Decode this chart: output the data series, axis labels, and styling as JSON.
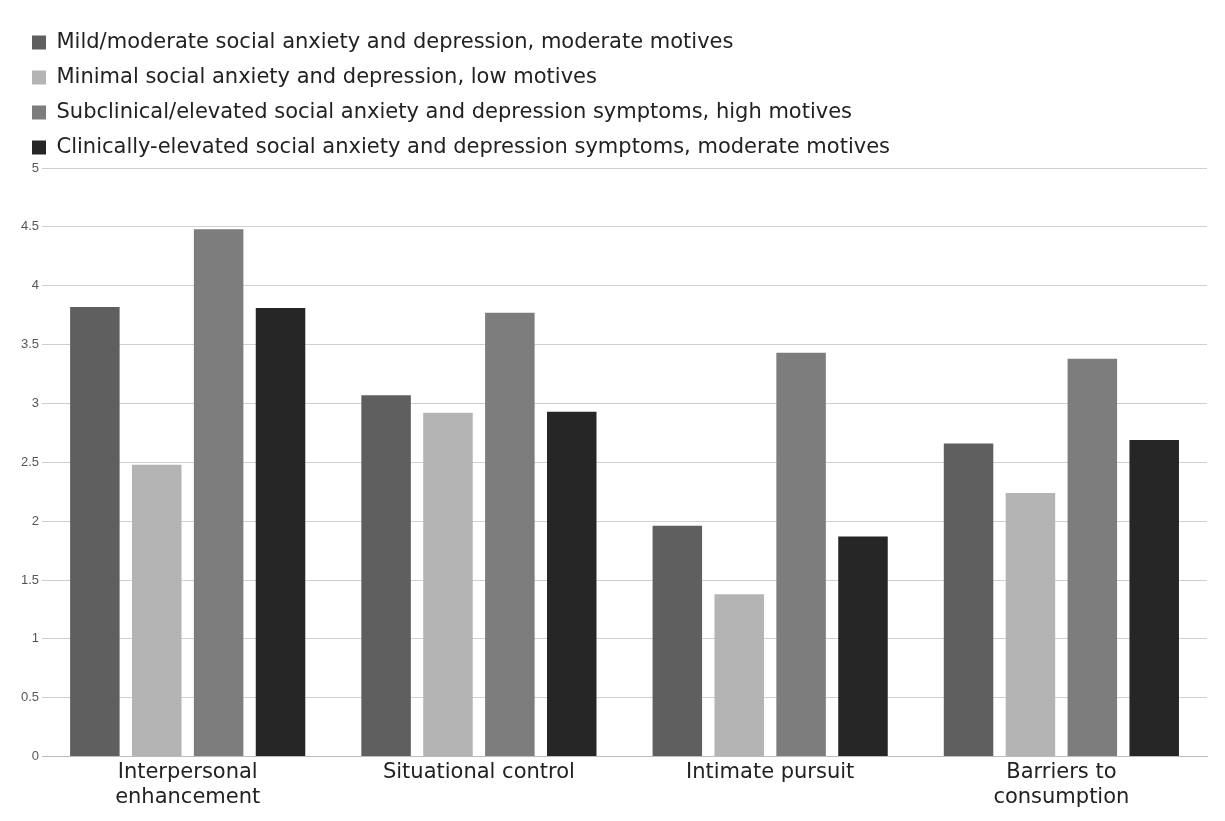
{
  "chart_data": {
    "type": "bar",
    "categories": [
      "Interpersonal enhancement",
      "Situational control",
      "Intimate pursuit",
      "Barriers to consumption"
    ],
    "series": [
      {
        "name": "Mild/moderate social anxiety and depression, moderate motives",
        "color": "#5f5f5f",
        "values": [
          3.82,
          3.07,
          1.96,
          2.66
        ]
      },
      {
        "name": "Minimal social anxiety and depression, low motives",
        "color": "#b4b4b4",
        "values": [
          2.48,
          2.92,
          1.38,
          2.24
        ]
      },
      {
        "name": "Subclinical/elevated social anxiety and depression symptoms, high motives",
        "color": "#7d7d7d",
        "values": [
          4.48,
          3.77,
          3.43,
          3.38
        ]
      },
      {
        "name": "Clinically-elevated social anxiety and depression symptoms, moderate motives",
        "color": "#262626",
        "values": [
          3.81,
          2.93,
          1.87,
          2.69
        ]
      }
    ],
    "ylim": [
      0,
      5
    ],
    "yticks": [
      0,
      0.5,
      1,
      1.5,
      2,
      2.5,
      3,
      3.5,
      4,
      4.5,
      5
    ],
    "grid": "y",
    "legend": "top"
  }
}
